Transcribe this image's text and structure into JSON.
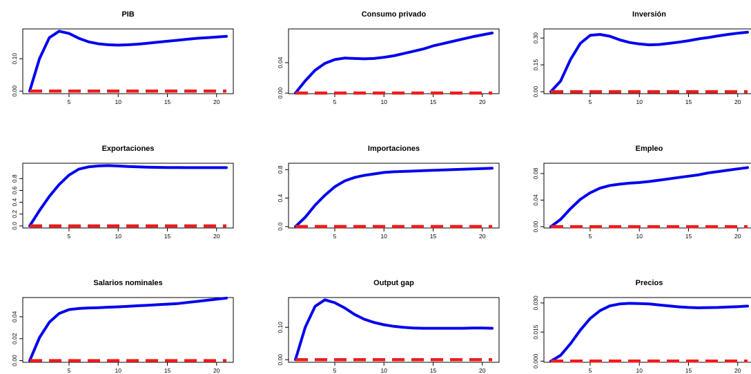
{
  "figure": {
    "colors": {
      "response": "#0000ee",
      "zero_line": "#ee1c1c",
      "frame": "#000000"
    }
  },
  "chart_data": [
    {
      "type": "line",
      "title": "PIB",
      "xlabel": "",
      "ylabel": "",
      "xlim": [
        0.3,
        21.7
      ],
      "ylim": [
        -0.008,
        0.192
      ],
      "xticks": [
        5,
        10,
        15,
        20
      ],
      "yticks": [
        0.0,
        0.1
      ],
      "ytick_labels": [
        "0.00",
        "0.10"
      ],
      "grid": false,
      "series": [
        {
          "x": [
            1,
            2,
            3,
            4,
            5,
            6,
            7,
            8,
            9,
            10,
            11,
            12,
            13,
            14,
            15,
            16,
            17,
            18,
            19,
            20,
            21
          ],
          "y": [
            0.0,
            0.1,
            0.165,
            0.185,
            0.178,
            0.163,
            0.152,
            0.146,
            0.143,
            0.142,
            0.143,
            0.145,
            0.148,
            0.151,
            0.154,
            0.157,
            0.16,
            0.163,
            0.165,
            0.167,
            0.169
          ],
          "style": "solid"
        },
        {
          "x": [
            1,
            21
          ],
          "y": [
            0,
            0
          ],
          "style": "dashed"
        }
      ]
    },
    {
      "type": "line",
      "title": "Consumo privado",
      "xlabel": "",
      "ylabel": "",
      "xlim": [
        0.3,
        21.7
      ],
      "ylim": [
        -0.0008,
        0.0843
      ],
      "xticks": [
        5,
        10,
        15,
        20
      ],
      "yticks": [
        0.0,
        0.04
      ],
      "ytick_labels": [
        "0.00",
        "0.04"
      ],
      "grid": false,
      "series": [
        {
          "x": [
            1,
            2,
            3,
            4,
            5,
            6,
            7,
            8,
            9,
            10,
            11,
            12,
            13,
            14,
            15,
            16,
            17,
            18,
            19,
            20,
            21
          ],
          "y": [
            0.0,
            0.016,
            0.03,
            0.039,
            0.044,
            0.046,
            0.0455,
            0.045,
            0.0455,
            0.047,
            0.049,
            0.052,
            0.055,
            0.058,
            0.062,
            0.065,
            0.068,
            0.071,
            0.074,
            0.0765,
            0.079
          ],
          "style": "solid"
        },
        {
          "x": [
            1,
            21
          ],
          "y": [
            0,
            0
          ],
          "style": "dashed"
        }
      ]
    },
    {
      "type": "line",
      "title": "Inversión",
      "xlabel": "",
      "ylabel": "",
      "xlim": [
        0.3,
        21.7
      ],
      "ylim": [
        -0.011,
        0.351
      ],
      "xticks": [
        5,
        10,
        15,
        20
      ],
      "yticks": [
        0.0,
        0.15,
        0.3
      ],
      "ytick_labels": [
        "0.00",
        "0.15",
        "0.30"
      ],
      "grid": false,
      "series": [
        {
          "x": [
            1,
            2,
            3,
            4,
            5,
            6,
            7,
            8,
            9,
            10,
            11,
            12,
            13,
            14,
            15,
            16,
            17,
            18,
            19,
            20,
            21
          ],
          "y": [
            0.0,
            0.06,
            0.18,
            0.27,
            0.315,
            0.32,
            0.31,
            0.29,
            0.275,
            0.267,
            0.262,
            0.264,
            0.27,
            0.277,
            0.285,
            0.295,
            0.303,
            0.312,
            0.32,
            0.327,
            0.333
          ],
          "style": "solid"
        },
        {
          "x": [
            1,
            21
          ],
          "y": [
            0,
            0
          ],
          "style": "dashed"
        }
      ]
    },
    {
      "type": "line",
      "title": "Exportaciones",
      "xlabel": "",
      "ylabel": "",
      "xlim": [
        0.3,
        21.7
      ],
      "ylim": [
        -0.035,
        1.06
      ],
      "xticks": [
        5,
        10,
        15,
        20
      ],
      "yticks": [
        0.0,
        0.2,
        0.4,
        0.6,
        0.8
      ],
      "ytick_labels": [
        "0.0",
        "0.2",
        "0.4",
        "0.6",
        "0.8"
      ],
      "grid": false,
      "series": [
        {
          "x": [
            1,
            2,
            3,
            4,
            5,
            6,
            7,
            8,
            9,
            10,
            11,
            12,
            13,
            14,
            15,
            16,
            17,
            18,
            19,
            20,
            21
          ],
          "y": [
            0.0,
            0.26,
            0.5,
            0.7,
            0.86,
            0.96,
            1.0,
            1.015,
            1.02,
            1.013,
            1.005,
            0.998,
            0.993,
            0.99,
            0.988,
            0.987,
            0.986,
            0.986,
            0.986,
            0.986,
            0.986
          ],
          "style": "solid"
        },
        {
          "x": [
            1,
            21
          ],
          "y": [
            0,
            0
          ],
          "style": "dashed"
        }
      ]
    },
    {
      "type": "line",
      "title": "Importaciones",
      "xlabel": "",
      "ylabel": "",
      "xlim": [
        0.3,
        21.7
      ],
      "ylim": [
        -0.02,
        0.89
      ],
      "xticks": [
        5,
        10,
        15,
        20
      ],
      "yticks": [
        0.0,
        0.4,
        0.8
      ],
      "ytick_labels": [
        "0.0",
        "0.4",
        "0.8"
      ],
      "grid": false,
      "series": [
        {
          "x": [
            1,
            2,
            3,
            4,
            5,
            6,
            7,
            8,
            9,
            10,
            11,
            12,
            13,
            14,
            15,
            16,
            17,
            18,
            19,
            20,
            21
          ],
          "y": [
            0.0,
            0.13,
            0.3,
            0.44,
            0.56,
            0.64,
            0.69,
            0.72,
            0.74,
            0.76,
            0.77,
            0.775,
            0.78,
            0.785,
            0.79,
            0.795,
            0.8,
            0.805,
            0.81,
            0.815,
            0.82
          ],
          "style": "solid"
        },
        {
          "x": [
            1,
            21
          ],
          "y": [
            0,
            0
          ],
          "style": "dashed"
        }
      ]
    },
    {
      "type": "line",
      "title": "Empleo",
      "xlabel": "",
      "ylabel": "",
      "xlim": [
        0.3,
        21.7
      ],
      "ylim": [
        -0.002,
        0.0955
      ],
      "xticks": [
        5,
        10,
        15,
        20
      ],
      "yticks": [
        0.0,
        0.04,
        0.08
      ],
      "ytick_labels": [
        "0.00",
        "0.04",
        "0.08"
      ],
      "grid": false,
      "series": [
        {
          "x": [
            1,
            2,
            3,
            4,
            5,
            6,
            7,
            8,
            9,
            10,
            11,
            12,
            13,
            14,
            15,
            16,
            17,
            18,
            19,
            20,
            21
          ],
          "y": [
            0.0,
            0.011,
            0.027,
            0.041,
            0.051,
            0.058,
            0.062,
            0.064,
            0.0655,
            0.0665,
            0.068,
            0.07,
            0.072,
            0.074,
            0.076,
            0.078,
            0.081,
            0.083,
            0.085,
            0.087,
            0.089
          ],
          "style": "solid"
        },
        {
          "x": [
            1,
            21
          ],
          "y": [
            0,
            0
          ],
          "style": "dashed"
        }
      ]
    },
    {
      "type": "line",
      "title": "Salarios nominales",
      "xlabel": "",
      "ylabel": "",
      "xlim": [
        0.3,
        21.7
      ],
      "ylim": [
        -0.0015,
        0.0575
      ],
      "xticks": [
        5,
        10,
        15,
        20
      ],
      "yticks": [
        0.0,
        0.02,
        0.04
      ],
      "ytick_labels": [
        "0.00",
        "0.02",
        "0.04"
      ],
      "grid": false,
      "series": [
        {
          "x": [
            1,
            2,
            3,
            4,
            5,
            6,
            7,
            8,
            9,
            10,
            11,
            12,
            13,
            14,
            15,
            16,
            17,
            18,
            19,
            20,
            21
          ],
          "y": [
            0.0,
            0.021,
            0.035,
            0.043,
            0.0465,
            0.0475,
            0.048,
            0.0483,
            0.0487,
            0.049,
            0.0495,
            0.05,
            0.0505,
            0.051,
            0.0515,
            0.052,
            0.053,
            0.054,
            0.055,
            0.056,
            0.057
          ],
          "style": "solid"
        },
        {
          "x": [
            1,
            21
          ],
          "y": [
            0,
            0
          ],
          "style": "dashed"
        }
      ]
    },
    {
      "type": "line",
      "title": "Output gap",
      "xlabel": "",
      "ylabel": "",
      "xlim": [
        0.3,
        21.7
      ],
      "ylim": [
        -0.008,
        0.192
      ],
      "xticks": [
        5,
        10,
        15,
        20
      ],
      "yticks": [
        0.0,
        0.1
      ],
      "ytick_labels": [
        "0.00",
        "0.10"
      ],
      "grid": false,
      "series": [
        {
          "x": [
            1,
            2,
            3,
            4,
            5,
            6,
            7,
            8,
            9,
            10,
            11,
            12,
            13,
            14,
            15,
            16,
            17,
            18,
            19,
            20,
            21
          ],
          "y": [
            0.0,
            0.1,
            0.165,
            0.185,
            0.176,
            0.16,
            0.14,
            0.125,
            0.115,
            0.108,
            0.103,
            0.1,
            0.098,
            0.097,
            0.097,
            0.097,
            0.097,
            0.097,
            0.098,
            0.098,
            0.097
          ],
          "style": "solid"
        },
        {
          "x": [
            1,
            21
          ],
          "y": [
            0,
            0
          ],
          "style": "dashed"
        }
      ]
    },
    {
      "type": "line",
      "title": "Precios",
      "xlabel": "",
      "ylabel": "",
      "xlim": [
        0.3,
        21.7
      ],
      "ylim": [
        -0.0006,
        0.0328
      ],
      "xticks": [
        5,
        10,
        15,
        20
      ],
      "yticks": [
        0.0,
        0.015,
        0.03
      ],
      "ytick_labels": [
        "0.000",
        "0.015",
        "0.030"
      ],
      "grid": false,
      "series": [
        {
          "x": [
            1,
            2,
            3,
            4,
            5,
            6,
            7,
            8,
            9,
            10,
            11,
            12,
            13,
            14,
            15,
            16,
            17,
            18,
            19,
            20,
            21
          ],
          "y": [
            0.0,
            0.003,
            0.009,
            0.016,
            0.022,
            0.026,
            0.0285,
            0.0295,
            0.0298,
            0.0297,
            0.0295,
            0.029,
            0.0285,
            0.028,
            0.0277,
            0.0275,
            0.0276,
            0.0277,
            0.0279,
            0.0281,
            0.0284
          ],
          "style": "solid"
        },
        {
          "x": [
            1,
            21
          ],
          "y": [
            0,
            0
          ],
          "style": "dashed"
        }
      ]
    }
  ]
}
